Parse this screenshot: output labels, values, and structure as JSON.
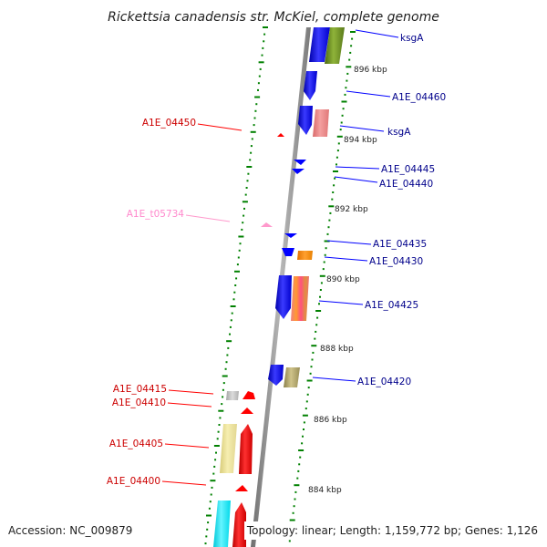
{
  "title": "Rickettsia canadensis str. McKiel, complete genome",
  "accession": "Accession: NC_009879",
  "summary": "Topology: linear; Length: 1,159,772 bp; Genes: 1,126",
  "colors": {
    "backbone": "#8a8a8a",
    "tick": "#008000",
    "blue_gene": "#0000ff",
    "red_gene": "#ff0000",
    "olive_gene": "#6b8e23",
    "label_blue": "#00008b",
    "label_red": "#cc0000",
    "label_pink": "#ff88cc"
  },
  "scale_labels": [
    {
      "id": "896",
      "text": "896 kbp"
    },
    {
      "id": "894",
      "text": "894 kbp"
    },
    {
      "id": "892",
      "text": "892 kbp"
    },
    {
      "id": "890",
      "text": "890 kbp"
    },
    {
      "id": "888",
      "text": "888 kbp"
    },
    {
      "id": "886",
      "text": "886 kbp"
    },
    {
      "id": "884",
      "text": "884 kbp"
    }
  ],
  "gene_labels": [
    {
      "id": "ksgA-top",
      "text": "ksgA",
      "color": "#00008b"
    },
    {
      "id": "A1E_04460",
      "text": "A1E_04460",
      "color": "#00008b"
    },
    {
      "id": "A1E_04450",
      "text": "A1E_04450",
      "color": "#cc0000"
    },
    {
      "id": "ksgA-mid",
      "text": "ksgA",
      "color": "#00008b"
    },
    {
      "id": "A1E_04445",
      "text": "A1E_04445",
      "color": "#00008b"
    },
    {
      "id": "A1E_04440",
      "text": "A1E_04440",
      "color": "#00008b"
    },
    {
      "id": "A1E_t05734",
      "text": "A1E_t05734",
      "color": "#ff88cc"
    },
    {
      "id": "A1E_04435",
      "text": "A1E_04435",
      "color": "#00008b"
    },
    {
      "id": "A1E_04430",
      "text": "A1E_04430",
      "color": "#00008b"
    },
    {
      "id": "A1E_04425",
      "text": "A1E_04425",
      "color": "#00008b"
    },
    {
      "id": "A1E_04420",
      "text": "A1E_04420",
      "color": "#00008b"
    },
    {
      "id": "A1E_04415",
      "text": "A1E_04415",
      "color": "#cc0000"
    },
    {
      "id": "A1E_04410",
      "text": "A1E_04410",
      "color": "#cc0000"
    },
    {
      "id": "A1E_04405",
      "text": "A1E_04405",
      "color": "#cc0000"
    },
    {
      "id": "A1E_04400",
      "text": "A1E_04400",
      "color": "#cc0000"
    }
  ]
}
